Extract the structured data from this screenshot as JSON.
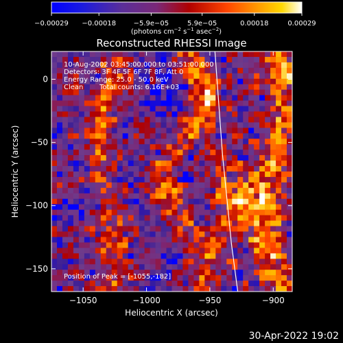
{
  "chart_data": {
    "type": "heatmap",
    "title": "Reconstructed RHESSI Image",
    "xlabel": "Heliocentric X (arcsec)",
    "ylabel": "Heliocentric Y (arcsec)",
    "xlim": [
      -1075,
      -885
    ],
    "ylim": [
      -168,
      22
    ],
    "x_ticks": [
      -1050,
      -1000,
      -950,
      -900
    ],
    "x_tick_labels": [
      "−1050",
      "−1000",
      "−950",
      "−900"
    ],
    "y_ticks": [
      0,
      -50,
      -100,
      -150
    ],
    "y_tick_labels": [
      "0",
      "−50",
      "−100",
      "−150"
    ],
    "grid": false,
    "colorbar": {
      "min": -0.00029,
      "max": 0.00029,
      "tick_values": [
        -0.00029,
        -0.00018,
        -5.9e-05,
        5.9e-05,
        0.00018,
        0.00029
      ],
      "tick_labels": [
        "−0.00029",
        "−0.00018",
        "−5.9e−05",
        "5.9e−05",
        "0.00018",
        "0.00029"
      ],
      "unit_main": "(photons cm",
      "unit_exp1": "−2",
      "unit_mid": " s",
      "unit_exp2": "−1",
      "unit_end": " asec",
      "unit_exp3": "−2",
      "unit_close": ")",
      "colormap": [
        "#0000ff",
        "#3c1e96",
        "#6e3c8c",
        "#7a2878",
        "#b00000",
        "#ff4500",
        "#ff8c00",
        "#ffc800",
        "#ffffff"
      ]
    },
    "peak": {
      "x": -1055,
      "y": -182
    },
    "limb_line": [
      [
        -946,
        22
      ],
      [
        -940,
        -60
      ],
      [
        -933,
        -130
      ],
      [
        -928,
        -168
      ]
    ]
  },
  "annotations": {
    "time_range": "10-Aug-2002 03:45:00.000 to 03:51:00.000",
    "detectors": "Detectors: 3F 4F 5F 6F 7F 8F, Att 0",
    "energy": "Energy Range: 25.0 - 50.0 keV",
    "clean": "Clean",
    "total_counts": "Total counts: 6.16E+03",
    "peak_label": "Position of Peak = [-1055,-182]"
  },
  "footer": {
    "timestamp": "30-Apr-2022 19:02"
  }
}
